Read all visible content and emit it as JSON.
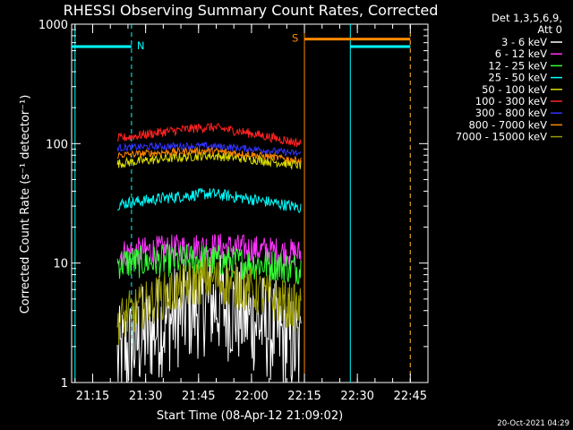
{
  "chart_data": {
    "type": "line",
    "title": "RHESSI Observing Summary Count Rates, Corrected",
    "xlabel": "Start Time (08-Apr-12 21:09:02)",
    "ylabel": "Corrected Count Rate (s⁻¹ detector⁻¹)",
    "y_scale": "log",
    "ylim": [
      1,
      1000
    ],
    "x_range_minutes": [
      "21:09:02",
      "22:50:00"
    ],
    "x_ticks": [
      "21:15",
      "21:30",
      "21:45",
      "22:00",
      "22:15",
      "22:30",
      "22:45"
    ],
    "y_ticks": [
      "1",
      "10",
      "100",
      "1000"
    ],
    "legend_title_lines": [
      "Det 1,3,5,6,9,",
      "Att 0"
    ],
    "series": [
      {
        "name": "3 - 6 keV",
        "color": "#ffffff",
        "start": "21:22",
        "end": "22:14",
        "level_start": 1.5,
        "level_mid": 4.5,
        "level_end": 1.8,
        "noise": 0.45
      },
      {
        "name": "6 - 12 keV",
        "color": "#ff33ff",
        "start": "21:22",
        "end": "22:14",
        "level_start": 12,
        "level_mid": 13,
        "level_end": 12,
        "noise": 0.12
      },
      {
        "name": "12 - 25 keV",
        "color": "#33ff33",
        "start": "21:22",
        "end": "22:14",
        "level_start": 10,
        "level_mid": 10,
        "level_end": 9,
        "noise": 0.14
      },
      {
        "name": "25 - 50 keV",
        "color": "#00ffff",
        "start": "21:22",
        "end": "22:14",
        "level_start": 31,
        "level_mid": 36,
        "level_end": 29,
        "noise": 0.05
      },
      {
        "name": "50 - 100 keV",
        "color": "#dddd00",
        "start": "21:22",
        "end": "22:14",
        "level_start": 68,
        "level_mid": 75,
        "level_end": 66,
        "noise": 0.04
      },
      {
        "name": "100 - 300 keV",
        "color": "#ff2222",
        "start": "21:22",
        "end": "22:14",
        "level_start": 110,
        "level_mid": 130,
        "level_end": 100,
        "noise": 0.04
      },
      {
        "name": "300 - 800 keV",
        "color": "#3333ff",
        "start": "21:22",
        "end": "22:14",
        "level_start": 92,
        "level_mid": 90,
        "level_end": 82,
        "noise": 0.03
      },
      {
        "name": "800 - 7000 keV",
        "color": "#ff8800",
        "start": "21:22",
        "end": "22:14",
        "level_start": 80,
        "level_mid": 82,
        "level_end": 72,
        "noise": 0.03
      },
      {
        "name": "7000 - 15000 keV",
        "color": "#999900",
        "start": "21:22",
        "end": "22:14",
        "level_start": 3.2,
        "level_mid": 7,
        "level_end": 4,
        "noise": 0.2
      }
    ],
    "flags": [
      {
        "label": "N",
        "color": "#00ffff",
        "segments": [
          [
            "21:09:02",
            "21:26"
          ],
          [
            "22:28",
            "22:45"
          ]
        ],
        "level": 650
      },
      {
        "label": "S",
        "color": "#ff8800",
        "segments": [
          [
            "22:15",
            "22:45"
          ]
        ],
        "level": 750
      }
    ],
    "vertical_lines": [
      {
        "time": "21:26",
        "color": "#00ffff",
        "style": "dashed"
      },
      {
        "time": "22:45",
        "color": "#00ffff",
        "style": "dashed"
      },
      {
        "time": "21:10",
        "color": "#00ffff",
        "style": "solid"
      },
      {
        "time": "22:28",
        "color": "#00ffff",
        "style": "solid"
      },
      {
        "time": "22:15",
        "color": "#ff8800",
        "style": "solid"
      },
      {
        "time": "22:45",
        "color": "#ff8800",
        "style": "dashed"
      }
    ]
  },
  "footer": {
    "timestamp": "20-Oct-2021 04:29"
  }
}
